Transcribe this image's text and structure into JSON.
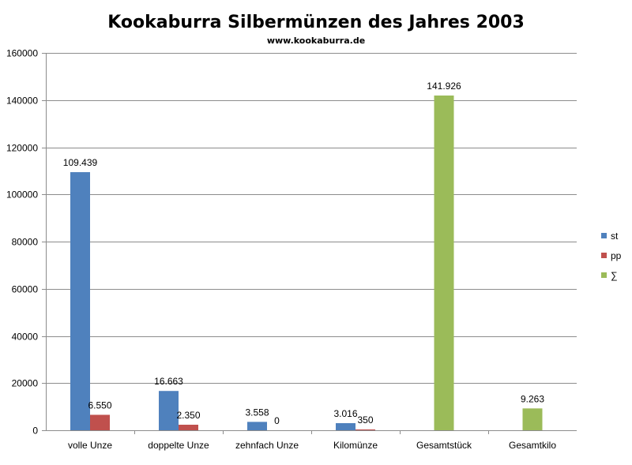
{
  "chart_data": {
    "type": "bar",
    "title": "Kookaburra Silbermünzen des Jahres 2003",
    "subtitle": "www.kookaburra.de",
    "xlabel": "",
    "ylabel": "",
    "ylim": [
      0,
      160000
    ],
    "yticks": [
      0,
      20000,
      40000,
      60000,
      80000,
      100000,
      120000,
      140000,
      160000
    ],
    "grid": true,
    "legend_position": "right",
    "categories": [
      "volle Unze",
      "doppelte Unze",
      "zehnfach Unze",
      "Kilomünze",
      "Gesamtstück",
      "Gesamtkilo"
    ],
    "series": [
      {
        "name": "st",
        "color": "#4F81BD",
        "values": [
          109439,
          16663,
          3558,
          3016,
          null,
          null
        ],
        "labels": [
          "109.439",
          "16.663",
          "3.558",
          "3.016",
          null,
          null
        ]
      },
      {
        "name": "pp",
        "color": "#C0504D",
        "values": [
          6550,
          2350,
          0,
          350,
          null,
          null
        ],
        "labels": [
          "6.550",
          "2.350",
          "0",
          "350",
          null,
          null
        ]
      },
      {
        "name": "∑",
        "color": "#9BBB59",
        "values": [
          null,
          null,
          null,
          null,
          141926,
          9263
        ],
        "labels": [
          null,
          null,
          null,
          null,
          "141.926",
          "9.263"
        ]
      }
    ]
  }
}
